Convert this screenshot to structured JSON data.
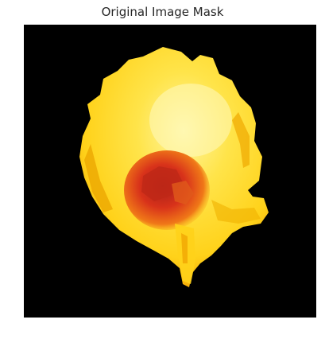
{
  "figure": {
    "title": "Original Image Mask"
  },
  "image": {
    "subject": "yellow flower petal with red center on black background",
    "background_color": "#000000",
    "palette": {
      "petal_light": "#fff5a0",
      "petal_mid": "#ffd21a",
      "petal_deep": "#f2a000",
      "center_red": "#d8321a",
      "center_orange": "#f07818"
    }
  }
}
